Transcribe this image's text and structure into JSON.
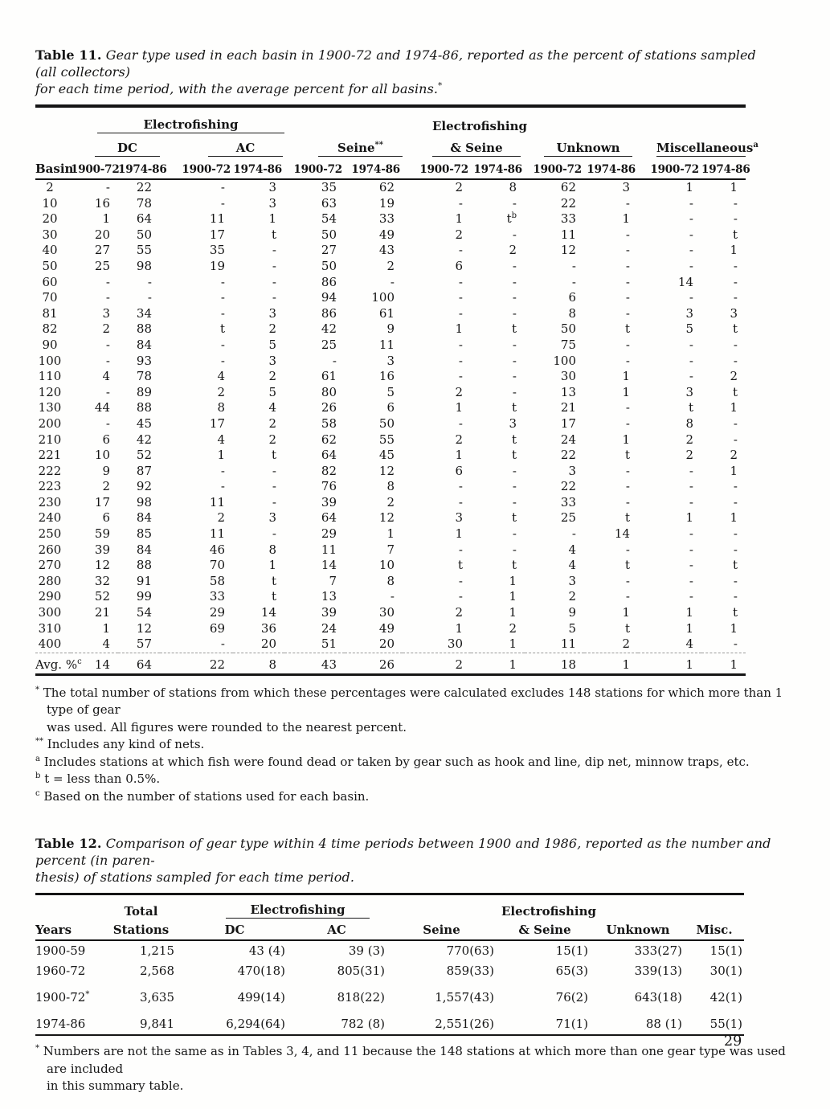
{
  "page_number": "29",
  "table11": {
    "label": "Table 11.",
    "caption_lines": [
      "Gear type used in each basin in 1900-72 and 1974-86, reported as the percent of stations sampled (all collectors)",
      "for each time period, with the average percent for all basins.^*"
    ],
    "headers": {
      "electrofishing": "Electrofishing",
      "dc": "DC",
      "ac": "AC",
      "seine": "Seine",
      "seine_sup": "**",
      "es_line1": "Electrofishing",
      "es_line2": "& Seine",
      "unknown": "Unknown",
      "misc": "Miscellaneous",
      "misc_sup": "a",
      "basin": "Basin",
      "years": [
        "1900-72",
        "1974-86"
      ]
    },
    "rows": [
      {
        "basin": "2",
        "values": [
          "-",
          "22",
          "-",
          "3",
          "35",
          "62",
          "2",
          "8",
          "62",
          "3",
          "1",
          "1"
        ]
      },
      {
        "basin": "10",
        "values": [
          "16",
          "78",
          "-",
          "3",
          "63",
          "19",
          "-",
          "-",
          "22",
          "-",
          "-",
          "-"
        ]
      },
      {
        "basin": "20",
        "values": [
          "1",
          "64",
          "11",
          "1",
          "54",
          "33",
          "1",
          "t^b",
          "33",
          "1",
          "-",
          "-"
        ]
      },
      {
        "basin": "30",
        "values": [
          "20",
          "50",
          "17",
          "t",
          "50",
          "49",
          "2",
          "-",
          "11",
          "-",
          "-",
          "t"
        ]
      },
      {
        "basin": "40",
        "values": [
          "27",
          "55",
          "35",
          "-",
          "27",
          "43",
          "-",
          "2",
          "12",
          "-",
          "-",
          "1"
        ]
      },
      {
        "basin": "50",
        "values": [
          "25",
          "98",
          "19",
          "-",
          "50",
          "2",
          "6",
          "-",
          "-",
          "-",
          "-",
          "-"
        ]
      },
      {
        "basin": "60",
        "values": [
          "-",
          "-",
          "-",
          "-",
          "86",
          "-",
          "-",
          "-",
          "-",
          "-",
          "14",
          "-"
        ]
      },
      {
        "basin": "70",
        "values": [
          "-",
          "-",
          "-",
          "-",
          "94",
          "100",
          "-",
          "-",
          "6",
          "-",
          "-",
          "-"
        ]
      },
      {
        "basin": "81",
        "values": [
          "3",
          "34",
          "-",
          "3",
          "86",
          "61",
          "-",
          "-",
          "8",
          "-",
          "3",
          "3"
        ]
      },
      {
        "basin": "82",
        "values": [
          "2",
          "88",
          "t",
          "2",
          "42",
          "9",
          "1",
          "t",
          "50",
          "t",
          "5",
          "t"
        ]
      },
      {
        "basin": "90",
        "values": [
          "-",
          "84",
          "-",
          "5",
          "25",
          "11",
          "-",
          "-",
          "75",
          "-",
          "-",
          "-"
        ]
      },
      {
        "basin": "100",
        "values": [
          "-",
          "93",
          "-",
          "3",
          "-",
          "3",
          "-",
          "-",
          "100",
          "-",
          "-",
          "-"
        ]
      },
      {
        "basin": "110",
        "values": [
          "4",
          "78",
          "4",
          "2",
          "61",
          "16",
          "-",
          "-",
          "30",
          "1",
          "-",
          "2"
        ]
      },
      {
        "basin": "120",
        "values": [
          "-",
          "89",
          "2",
          "5",
          "80",
          "5",
          "2",
          "-",
          "13",
          "1",
          "3",
          "t"
        ]
      },
      {
        "basin": "130",
        "values": [
          "44",
          "88",
          "8",
          "4",
          "26",
          "6",
          "1",
          "t",
          "21",
          "-",
          "t",
          "1"
        ]
      },
      {
        "basin": "200",
        "values": [
          "-",
          "45",
          "17",
          "2",
          "58",
          "50",
          "-",
          "3",
          "17",
          "-",
          "8",
          "-"
        ]
      },
      {
        "basin": "210",
        "values": [
          "6",
          "42",
          "4",
          "2",
          "62",
          "55",
          "2",
          "t",
          "24",
          "1",
          "2",
          "-"
        ]
      },
      {
        "basin": "221",
        "values": [
          "10",
          "52",
          "1",
          "t",
          "64",
          "45",
          "1",
          "t",
          "22",
          "t",
          "2",
          "2"
        ]
      },
      {
        "basin": "222",
        "values": [
          "9",
          "87",
          "-",
          "-",
          "82",
          "12",
          "6",
          "-",
          "3",
          "-",
          "-",
          "1"
        ]
      },
      {
        "basin": "223",
        "values": [
          "2",
          "92",
          "-",
          "-",
          "76",
          "8",
          "-",
          "-",
          "22",
          "-",
          "-",
          "-"
        ]
      },
      {
        "basin": "230",
        "values": [
          "17",
          "98",
          "11",
          "-",
          "39",
          "2",
          "-",
          "-",
          "33",
          "-",
          "-",
          "-"
        ]
      },
      {
        "basin": "240",
        "values": [
          "6",
          "84",
          "2",
          "3",
          "64",
          "12",
          "3",
          "t",
          "25",
          "t",
          "1",
          "1"
        ]
      },
      {
        "basin": "250",
        "values": [
          "59",
          "85",
          "11",
          "-",
          "29",
          "1",
          "1",
          "-",
          "-",
          "14",
          "-",
          "-"
        ]
      },
      {
        "basin": "260",
        "values": [
          "39",
          "84",
          "46",
          "8",
          "11",
          "7",
          "-",
          "-",
          "4",
          "-",
          "-",
          "-"
        ]
      },
      {
        "basin": "270",
        "values": [
          "12",
          "88",
          "70",
          "1",
          "14",
          "10",
          "t",
          "t",
          "4",
          "t",
          "-",
          "t"
        ]
      },
      {
        "basin": "280",
        "values": [
          "32",
          "91",
          "58",
          "t",
          "7",
          "8",
          "-",
          "1",
          "3",
          "-",
          "-",
          "-"
        ]
      },
      {
        "basin": "290",
        "values": [
          "52",
          "99",
          "33",
          "t",
          "13",
          "-",
          "-",
          "1",
          "2",
          "-",
          "-",
          "-"
        ]
      },
      {
        "basin": "300",
        "values": [
          "21",
          "54",
          "29",
          "14",
          "39",
          "30",
          "2",
          "1",
          "9",
          "1",
          "1",
          "t"
        ]
      },
      {
        "basin": "310",
        "values": [
          "1",
          "12",
          "69",
          "36",
          "24",
          "49",
          "1",
          "2",
          "5",
          "t",
          "1",
          "1"
        ]
      },
      {
        "basin": "400",
        "values": [
          "4",
          "57",
          "-",
          "20",
          "51",
          "20",
          "30",
          "1",
          "11",
          "2",
          "4",
          "-"
        ]
      }
    ],
    "avg_row": {
      "basin": "Avg. %^c",
      "values": [
        "14",
        "64",
        "22",
        "8",
        "43",
        "26",
        "2",
        "1",
        "18",
        "1",
        "1",
        "1"
      ]
    },
    "footnotes": [
      {
        "mark": "*",
        "lines": [
          "The total number of stations from which these percentages were calculated excludes 148 stations for which more than 1 type of gear",
          "was used.  All figures were rounded to the nearest percent."
        ]
      },
      {
        "mark": "**",
        "lines": [
          "Includes any kind of nets."
        ]
      },
      {
        "mark": "a",
        "lines": [
          "Includes stations at which fish were found dead or taken by gear such as hook and line, dip net, minnow traps, etc."
        ]
      },
      {
        "mark": "b",
        "lines": [
          "t = less than 0.5%."
        ]
      },
      {
        "mark": "c",
        "lines": [
          "Based on the number of stations used for each basin."
        ]
      }
    ]
  },
  "table12": {
    "label": "Table 12.",
    "caption_lines": [
      "Comparison of gear type within 4 time periods between 1900 and 1986, reported as the number and percent (in paren-",
      "thesis) of stations sampled for each time period."
    ],
    "headers": {
      "years": "Years",
      "total_line1": "Total",
      "total_line2": "Stations",
      "electrofishing": "Electrofishing",
      "dc": "DC",
      "ac": "AC",
      "seine": "Seine",
      "es_line1": "Electrofishing",
      "es_line2": "& Seine",
      "unknown": "Unknown",
      "misc": "Misc."
    },
    "rows": [
      {
        "years": "1900-59",
        "total": "1,215",
        "dc": "43 (4)",
        "ac": "39 (3)",
        "seine": "770(63)",
        "es": "15(1)",
        "unknown": "333(27)",
        "misc": "15(1)"
      },
      {
        "years": "1960-72",
        "total": "2,568",
        "dc": "470(18)",
        "ac": "805(31)",
        "seine": "859(33)",
        "es": "65(3)",
        "unknown": "339(13)",
        "misc": "30(1)"
      },
      {
        "years": "1900-72^*",
        "total": "3,635",
        "dc": "499(14)",
        "ac": "818(22)",
        "seine": "1,557(43)",
        "es": "76(2)",
        "unknown": "643(18)",
        "misc": "42(1)"
      },
      {
        "years": "1974-86",
        "total": "9,841",
        "dc": "6,294(64)",
        "ac": "782 (8)",
        "seine": "2,551(26)",
        "es": "71(1)",
        "unknown": "88 (1)",
        "misc": "55(1)"
      }
    ],
    "footnote": {
      "mark": "*",
      "lines": [
        "Numbers are not the same as in Tables 3, 4, and 11 because the 148 stations at which more than one gear type was used are included",
        "in this summary table."
      ]
    }
  }
}
